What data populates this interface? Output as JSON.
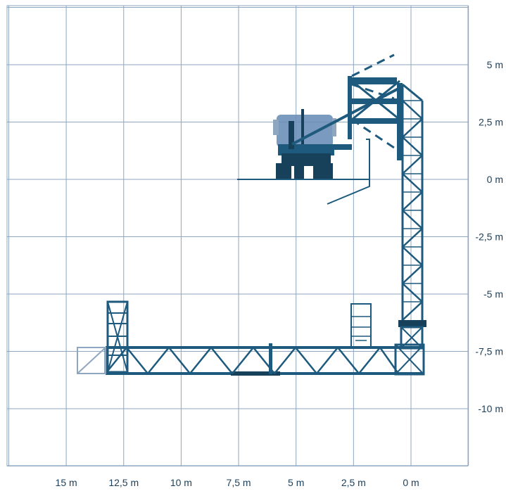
{
  "colors": {
    "grid": "#8ea6bf",
    "structure": "#1d5a7d",
    "dark": "#17405b",
    "truck": "#6c8fb8",
    "ghost": "#8fa6c0",
    "label": "#1b3f5a"
  },
  "icons": {
    "truck": "truck-chassis-icon",
    "basket": "work-basket-icon"
  },
  "axes": {
    "x_ticks": [
      {
        "value": 15,
        "label": "15 m"
      },
      {
        "value": 12.5,
        "label": "12,5 m"
      },
      {
        "value": 10,
        "label": "10 m"
      },
      {
        "value": 7.5,
        "label": "7,5 m"
      },
      {
        "value": 5,
        "label": "5 m"
      },
      {
        "value": 2.5,
        "label": "2,5 m"
      },
      {
        "value": 0,
        "label": "0 m"
      }
    ],
    "y_ticks": [
      {
        "value": 5,
        "label": "5 m"
      },
      {
        "value": 2.5,
        "label": "2,5 m"
      },
      {
        "value": 0,
        "label": "0 m"
      },
      {
        "value": -2.5,
        "label": "-2,5 m"
      },
      {
        "value": -5,
        "label": "-5 m"
      },
      {
        "value": -7.5,
        "label": "-7,5 m"
      },
      {
        "value": -10,
        "label": "-10 m"
      }
    ]
  }
}
